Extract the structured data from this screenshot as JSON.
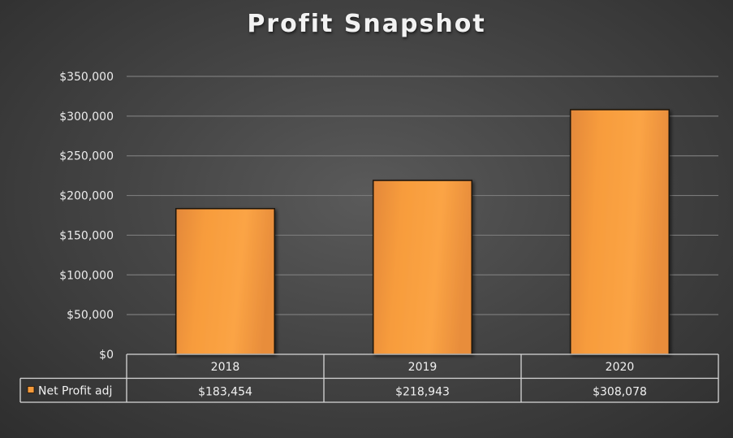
{
  "chart_data": {
    "type": "bar",
    "title": "Profit Snapshot",
    "categories": [
      "2018",
      "2019",
      "2020"
    ],
    "series": [
      {
        "name": "Net Profit adj",
        "values": [
          183454,
          218943,
          308078
        ],
        "value_labels": [
          "$183,454",
          "$218,943",
          "$308,078"
        ]
      }
    ],
    "ylim": [
      0,
      350000
    ],
    "yticks": [
      0,
      50000,
      100000,
      150000,
      200000,
      250000,
      300000,
      350000
    ],
    "ytick_labels": [
      "$0",
      "$50,000",
      "$100,000",
      "$150,000",
      "$200,000",
      "$250,000",
      "$300,000",
      "$350,000"
    ],
    "grid": true,
    "data_table": true,
    "colors": {
      "bar": "#f59a3a",
      "bar_edge": "#1e1208",
      "grid": "#7a7a7a",
      "table_border": "#d8d8d8",
      "text": "#ececec"
    }
  }
}
